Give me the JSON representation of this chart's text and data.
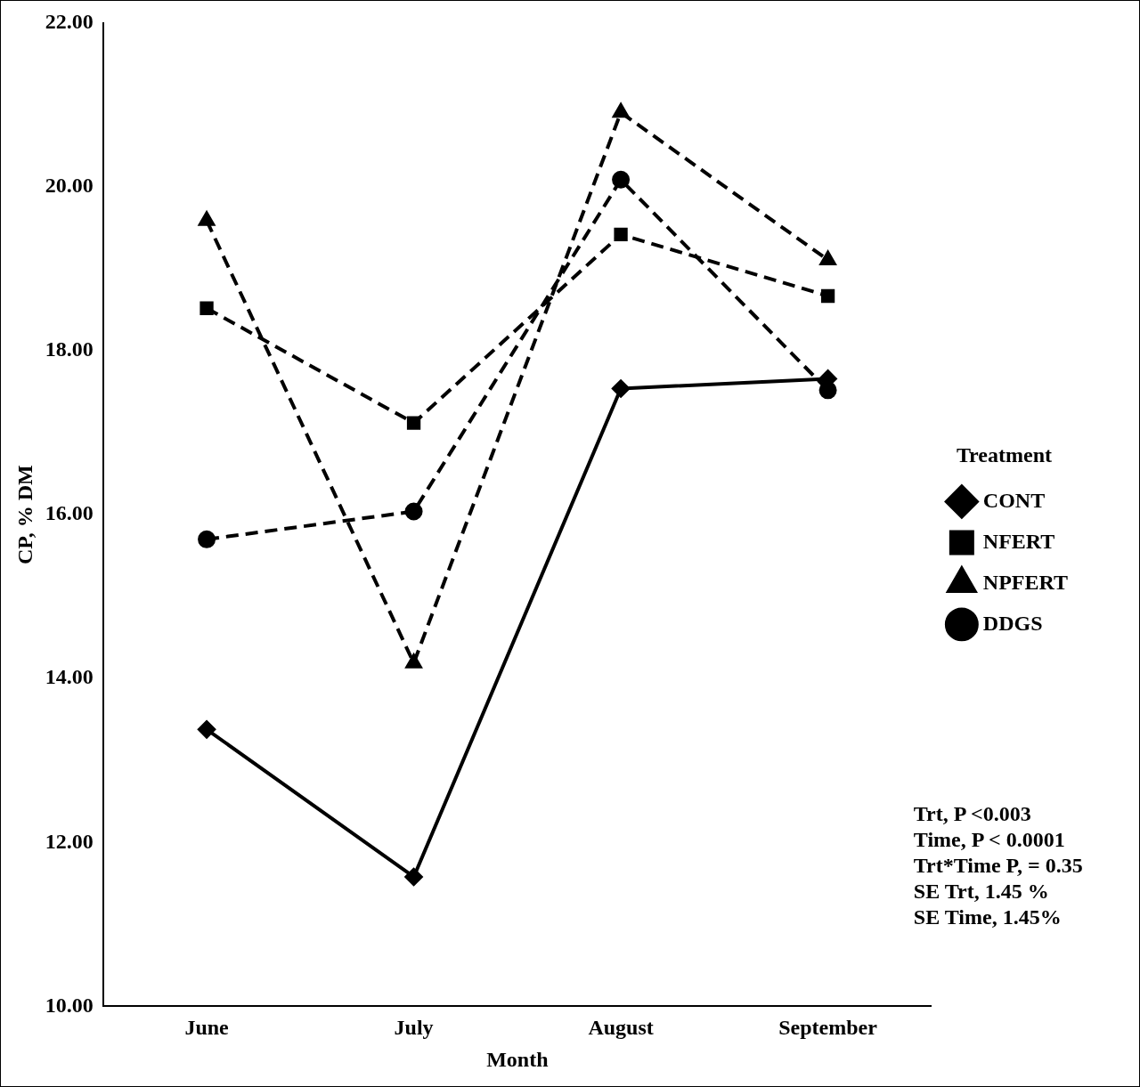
{
  "chart_data": {
    "type": "line",
    "xlabel": "Month",
    "ylabel": "CP, % DM",
    "legend_title": "Treatment",
    "legend": "right",
    "categories": [
      "June",
      "July",
      "August",
      "September"
    ],
    "ylim": [
      10,
      22
    ],
    "yticks": [
      {
        "value": 10,
        "label": "10.00"
      },
      {
        "value": 12,
        "label": "12.00"
      },
      {
        "value": 14,
        "label": "14.00"
      },
      {
        "value": 16,
        "label": "16.00"
      },
      {
        "value": 18,
        "label": "18.00"
      },
      {
        "value": 20,
        "label": "20.00"
      },
      {
        "value": 22,
        "label": "22.00"
      }
    ],
    "grid": false,
    "series": [
      {
        "name": "CONT",
        "color": "#000000",
        "marker": "diamond",
        "line_style": "solid",
        "values": [
          13.38,
          11.58,
          17.54,
          17.66
        ]
      },
      {
        "name": "NFERT",
        "color": "#000000",
        "marker": "square",
        "line_style": "dashed",
        "values": [
          18.52,
          17.12,
          19.42,
          18.67
        ]
      },
      {
        "name": "NPFERT",
        "color": "#000000",
        "marker": "triangle",
        "line_style": "dashed",
        "values": [
          19.59,
          14.19,
          20.91,
          19.11
        ]
      },
      {
        "name": "DDGS",
        "color": "#000000",
        "marker": "circle",
        "line_style": "dashed",
        "values": [
          15.7,
          16.04,
          20.09,
          17.52
        ]
      }
    ],
    "annotations": [
      "Trt, P <0.003",
      "Time, P < 0.0001",
      "Trt*Time P, = 0.35",
      "SE Trt, 1.45 %",
      "SE Time, 1.45%"
    ]
  }
}
